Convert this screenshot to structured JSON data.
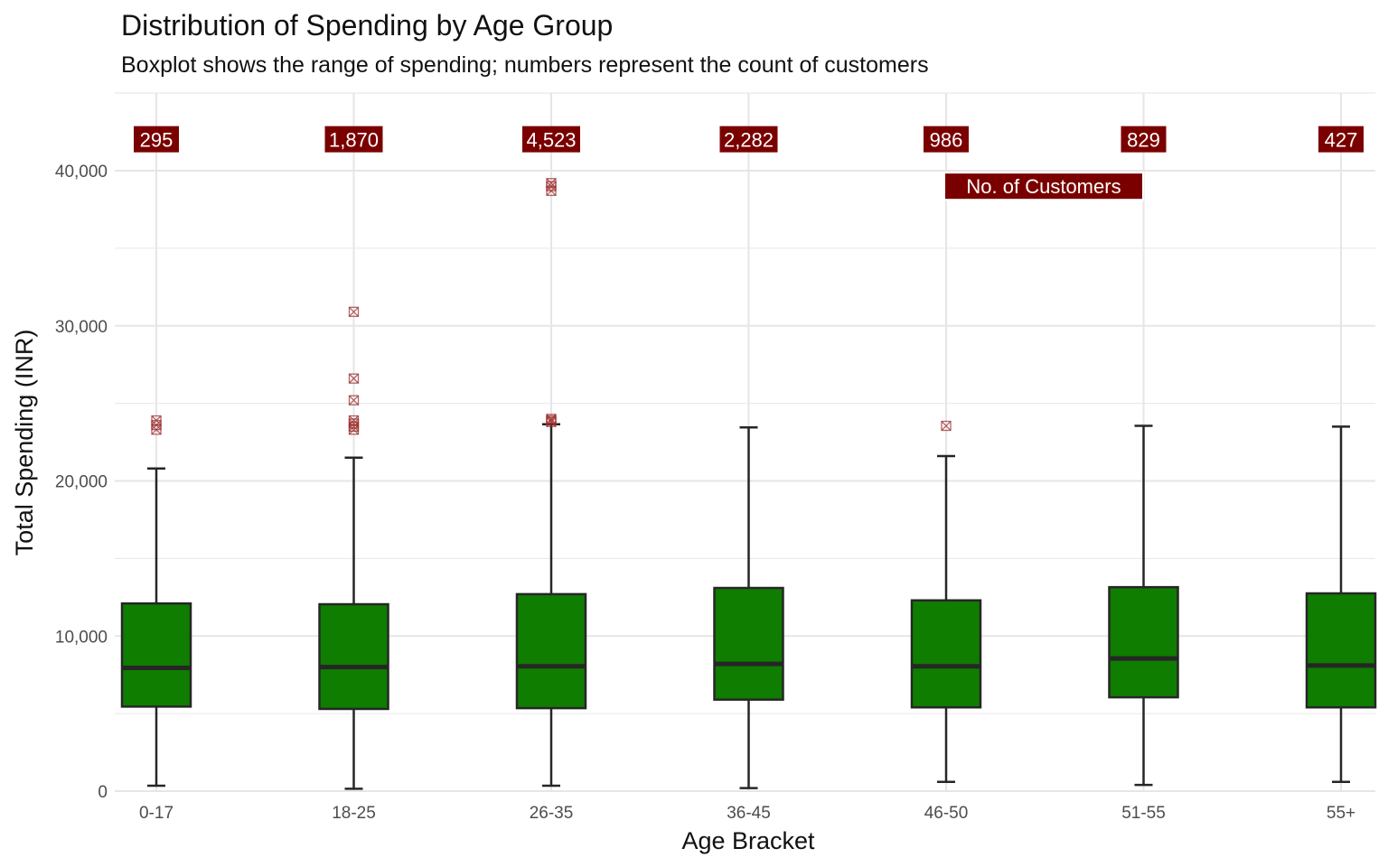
{
  "chart_data": {
    "type": "boxplot",
    "title": "Distribution of Spending by Age Group",
    "subtitle": "Boxplot shows the range of spending; numbers represent the count of customers",
    "xlabel": "Age Bracket",
    "ylabel": "Total Spending (INR)",
    "ylim": [
      0,
      45000
    ],
    "yticks": [
      0,
      10000,
      20000,
      30000,
      40000
    ],
    "ytick_labels": [
      "0",
      "10,000",
      "20,000",
      "30,000",
      "40,000"
    ],
    "grid": true,
    "count_label_y": 42000,
    "legend_label": "No. of Customers",
    "legend_label_y": 39000,
    "categories": [
      "0-17",
      "18-25",
      "26-35",
      "36-45",
      "46-50",
      "51-55",
      "55+"
    ],
    "boxes": [
      {
        "category": "0-17",
        "min": 350,
        "q1": 5450,
        "median": 7950,
        "q3": 12100,
        "max": 20800,
        "outliers": [
          23300,
          23600,
          23900
        ],
        "count": 295,
        "count_label": "295"
      },
      {
        "category": "18-25",
        "min": 150,
        "q1": 5300,
        "median": 8000,
        "q3": 12050,
        "max": 21500,
        "outliers": [
          23300,
          23500,
          23700,
          23900,
          25200,
          26600,
          30900
        ],
        "count": 1870,
        "count_label": "1,870"
      },
      {
        "category": "26-35",
        "min": 350,
        "q1": 5350,
        "median": 8050,
        "q3": 12700,
        "max": 23650,
        "outliers": [
          23800,
          23900,
          24000,
          38700,
          39000,
          39200
        ],
        "count": 4523,
        "count_label": "4,523"
      },
      {
        "category": "36-45",
        "min": 200,
        "q1": 5900,
        "median": 8200,
        "q3": 13100,
        "max": 23450,
        "outliers": [],
        "count": 2282,
        "count_label": "2,282"
      },
      {
        "category": "46-50",
        "min": 600,
        "q1": 5400,
        "median": 8050,
        "q3": 12300,
        "max": 21600,
        "outliers": [
          23550
        ],
        "count": 986,
        "count_label": "986"
      },
      {
        "category": "51-55",
        "min": 400,
        "q1": 6050,
        "median": 8550,
        "q3": 13150,
        "max": 23550,
        "outliers": [],
        "count": 829,
        "count_label": "829"
      },
      {
        "category": "55+",
        "min": 600,
        "q1": 5400,
        "median": 8100,
        "q3": 12750,
        "max": 23500,
        "outliers": [],
        "count": 427,
        "count_label": "427"
      }
    ],
    "colors": {
      "box_fill": "#0f7d00",
      "box_stroke": "#262626",
      "label_bg": "#7a0000",
      "label_text": "#ffffff",
      "outlier": "#9b2d2d",
      "grid": "#e6e6e6",
      "tick_text": "#4d4d4d"
    }
  }
}
